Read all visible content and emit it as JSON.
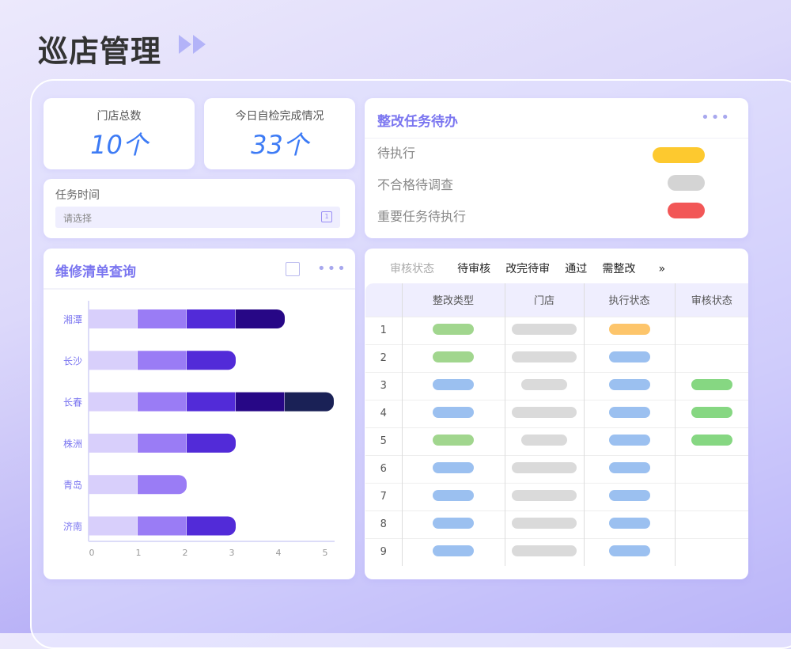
{
  "page_title": "巡店管理",
  "stats": [
    {
      "label": "门店总数",
      "value": "10个"
    },
    {
      "label": "今日自检完成情况",
      "value": "33个"
    }
  ],
  "task_time": {
    "label": "任务时间",
    "placeholder": "请选择"
  },
  "todo": {
    "title": "整改任务待办",
    "items": [
      {
        "label": "待执行",
        "color": "#fdc92f"
      },
      {
        "label": "不合格待调查",
        "color": "#d4d4d4"
      },
      {
        "label": "重要任务待执行",
        "color": "#f25757"
      }
    ]
  },
  "repair": {
    "title": "维修清单查询"
  },
  "chart_data": {
    "type": "bar",
    "orientation": "horizontal",
    "stacked": true,
    "categories": [
      "湘潭",
      "长沙",
      "长春",
      "株洲",
      "青岛",
      "济南"
    ],
    "segment_colors": [
      "#d8cffb",
      "#9a7cf5",
      "#522bd8",
      "#270786",
      "#1a2156"
    ],
    "series": [
      {
        "values": [
          1,
          1,
          1,
          1,
          1,
          1
        ]
      },
      {
        "values": [
          1,
          1,
          1,
          1,
          1,
          1
        ]
      },
      {
        "values": [
          1,
          1,
          1,
          1,
          0,
          1
        ]
      },
      {
        "values": [
          1,
          0,
          1,
          0,
          0,
          0
        ]
      },
      {
        "values": [
          0,
          0,
          1,
          0,
          0,
          0
        ]
      }
    ],
    "xticks": [
      "0",
      "1",
      "2",
      "3",
      "4",
      "5"
    ],
    "xlim": [
      0,
      5
    ]
  },
  "audit": {
    "filter_label": "审核状态",
    "tabs": [
      "待审核",
      "改完待审",
      "通过",
      "需整改"
    ],
    "more": "»",
    "columns": [
      "整改类型",
      "门店",
      "执行状态",
      "审核状态"
    ],
    "colors": {
      "green": "#a1d68e",
      "gray": "#dadada",
      "orange": "#fdc56b",
      "blue": "#9bc0f0",
      "audit_green": "#86d782"
    },
    "rows": [
      {
        "index": "1",
        "type": "green",
        "store": "long",
        "exec": "orange",
        "audit": ""
      },
      {
        "index": "2",
        "type": "green",
        "store": "long",
        "exec": "blue",
        "audit": ""
      },
      {
        "index": "3",
        "type": "blue",
        "store": "short",
        "exec": "blue",
        "audit": "green"
      },
      {
        "index": "4",
        "type": "blue",
        "store": "long",
        "exec": "blue",
        "audit": "green"
      },
      {
        "index": "5",
        "type": "green",
        "store": "short",
        "exec": "blue",
        "audit": "green"
      },
      {
        "index": "6",
        "type": "blue",
        "store": "long",
        "exec": "blue",
        "audit": ""
      },
      {
        "index": "7",
        "type": "blue",
        "store": "long",
        "exec": "blue",
        "audit": ""
      },
      {
        "index": "8",
        "type": "blue",
        "store": "long",
        "exec": "blue",
        "audit": ""
      },
      {
        "index": "9",
        "type": "blue",
        "store": "long",
        "exec": "blue",
        "audit": ""
      }
    ]
  }
}
